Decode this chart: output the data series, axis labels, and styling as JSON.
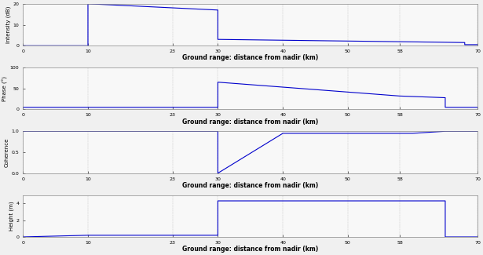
{
  "xlim": [
    0,
    70
  ],
  "xticks": [
    0,
    10,
    23,
    30,
    40,
    50,
    58,
    70
  ],
  "xlabel": "Ground range: distance from nadir (km)",
  "line_color": "#0000cc",
  "line_width": 0.8,
  "bg_color": "#f0f0f0",
  "axes_bg": "#f8f8f8",
  "subplots": [
    {
      "ylabel": "Intensity (dB)",
      "ylim": [
        0,
        20
      ],
      "yticks": [
        0,
        10,
        20
      ],
      "ytick_labels": [
        "0",
        "10",
        "20"
      ],
      "x": [
        0,
        10,
        10,
        30,
        30,
        68,
        68,
        70
      ],
      "y": [
        0,
        0,
        20,
        17,
        3,
        1.5,
        0.5,
        0.5
      ]
    },
    {
      "ylabel": "Phase (°)",
      "ylim": [
        0,
        100
      ],
      "yticks": [
        0,
        50,
        100
      ],
      "ytick_labels": [
        "0",
        "50",
        "100"
      ],
      "x": [
        0,
        10,
        30,
        30,
        58,
        65,
        65,
        70
      ],
      "y": [
        5,
        5,
        5,
        65,
        32,
        28,
        5,
        5
      ]
    },
    {
      "ylabel": "Coherence",
      "ylim": [
        0,
        1
      ],
      "yticks": [
        0.0,
        0.5,
        1.0
      ],
      "ytick_labels": [
        "0.0",
        "0.5",
        "1.0"
      ],
      "x": [
        0,
        10,
        30,
        30,
        40,
        60,
        65,
        65,
        70
      ],
      "y": [
        1,
        1,
        1,
        0,
        0.95,
        0.95,
        1,
        1,
        1
      ]
    },
    {
      "ylabel": "Height (m)",
      "ylim": [
        0,
        5
      ],
      "yticks": [
        0,
        2,
        4
      ],
      "ytick_labels": [
        "0",
        "2",
        "4"
      ],
      "x": [
        0,
        10,
        30,
        30,
        65,
        65,
        70
      ],
      "y": [
        0,
        0.2,
        0.2,
        4.3,
        4.3,
        0,
        0
      ]
    }
  ]
}
